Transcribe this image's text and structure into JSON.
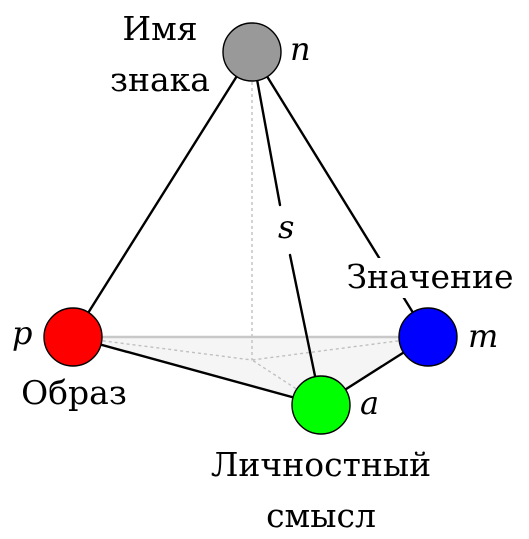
{
  "nodes": {
    "apex": {
      "var": "n",
      "label_lines": [
        "Имя",
        "знака"
      ],
      "color": "#999999"
    },
    "left": {
      "var": "p",
      "label_lines": [
        "Образ"
      ],
      "color": "#ff0000"
    },
    "right": {
      "var": "m",
      "label_lines": [
        "Значение"
      ],
      "color": "#0000ff"
    },
    "front": {
      "var": "a",
      "label_lines": [
        "Личностный",
        "смысл"
      ],
      "color": "#00ff00"
    }
  },
  "edges": {
    "apex_front": {
      "var": "s"
    }
  }
}
